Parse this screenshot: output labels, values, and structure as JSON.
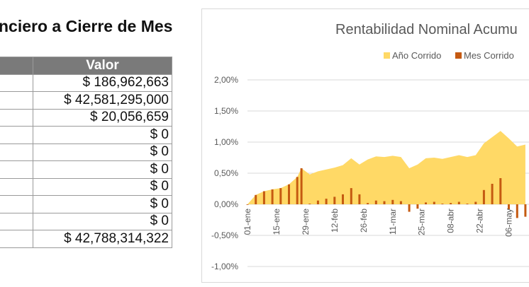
{
  "heading": "nciero a Cierre de Mes",
  "table": {
    "header": "Valor",
    "rows": [
      "$ 186,962,663",
      "$ 42,581,295,000",
      "$ 20,056,659",
      "$ 0",
      "$ 0",
      "$ 0",
      "$ 0",
      "$ 0",
      "$ 0",
      "$ 42,788,314,322"
    ]
  },
  "colors": {
    "ano": "#ffd966",
    "mes": "#c55a11",
    "header_bg": "#7a7a7a",
    "axis_text": "#595959"
  },
  "chart_data": {
    "type": "area",
    "title": "Rentabilidad Nominal Acumu",
    "legend": {
      "position": "top",
      "entries": [
        "Año Corrido",
        "Mes Corrido"
      ]
    },
    "ylim": [
      -0.01,
      0.02
    ],
    "yticks": [
      "2,00%",
      "1,50%",
      "1,00%",
      "0,50%",
      "0,00%",
      "-0,50%",
      "-1,00%"
    ],
    "xticks": [
      "01-ene",
      "15-ene",
      "29-ene",
      "12-feb",
      "26-feb",
      "11-mar",
      "25-mar",
      "08-abr",
      "22-abr",
      "06-may"
    ],
    "grid": true,
    "series": [
      {
        "name": "Año Corrido",
        "type": "area",
        "x": [
          "01-ene",
          "05-ene",
          "09-ene",
          "13-ene",
          "17-ene",
          "21-ene",
          "25-ene",
          "27-ene",
          "31-ene",
          "04-feb",
          "08-feb",
          "12-feb",
          "16-feb",
          "20-feb",
          "24-feb",
          "28-feb",
          "03-mar",
          "07-mar",
          "11-mar",
          "15-mar",
          "19-mar",
          "23-mar",
          "27-mar",
          "31-mar",
          "04-abr",
          "08-abr",
          "12-abr",
          "16-abr",
          "20-abr",
          "24-abr",
          "28-abr",
          "02-may",
          "06-may",
          "10-may",
          "14-may"
        ],
        "values": [
          0.0,
          0.0015,
          0.0021,
          0.0024,
          0.0026,
          0.0032,
          0.0044,
          0.0058,
          0.0048,
          0.0053,
          0.0056,
          0.0059,
          0.0063,
          0.0074,
          0.0064,
          0.0072,
          0.0077,
          0.0076,
          0.0078,
          0.0076,
          0.0058,
          0.0064,
          0.0074,
          0.0075,
          0.0073,
          0.0076,
          0.0079,
          0.0076,
          0.0079,
          0.0098,
          0.0108,
          0.0118,
          0.0106,
          0.0093,
          0.0096
        ]
      },
      {
        "name": "Mes Corrido",
        "type": "bar",
        "x": [
          "01-ene",
          "05-ene",
          "09-ene",
          "13-ene",
          "17-ene",
          "21-ene",
          "25-ene",
          "27-ene",
          "31-ene",
          "04-feb",
          "08-feb",
          "12-feb",
          "16-feb",
          "20-feb",
          "24-feb",
          "28-feb",
          "03-mar",
          "07-mar",
          "11-mar",
          "15-mar",
          "19-mar",
          "23-mar",
          "27-mar",
          "31-mar",
          "04-abr",
          "08-abr",
          "12-abr",
          "16-abr",
          "20-abr",
          "24-abr",
          "28-abr",
          "02-may",
          "06-may",
          "10-may",
          "14-may"
        ],
        "values": [
          0.0,
          0.0015,
          0.0021,
          0.0024,
          0.0026,
          0.0032,
          0.0044,
          0.0058,
          0.0001,
          0.0006,
          0.0009,
          0.0012,
          0.0016,
          0.0026,
          0.0016,
          0.0002,
          0.0006,
          0.0005,
          0.0007,
          0.0005,
          -0.0012,
          -0.0007,
          0.0003,
          0.0004,
          0.0001,
          0.0002,
          0.0004,
          0.0001,
          0.0004,
          0.0023,
          0.0033,
          0.0042,
          -0.0008,
          -0.0022,
          -0.002
        ]
      }
    ]
  }
}
